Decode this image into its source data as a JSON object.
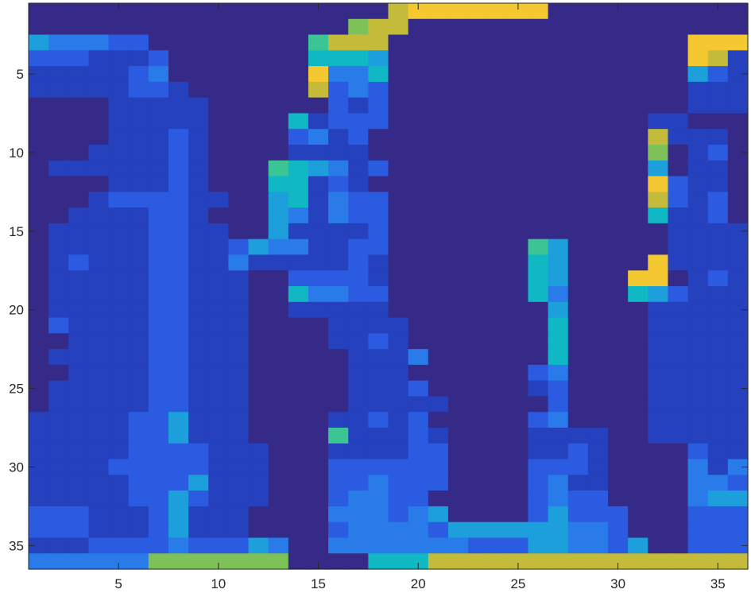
{
  "chart_data": {
    "type": "heatmap",
    "title": "",
    "xlabel": "",
    "ylabel": "",
    "xlim": [
      0.5,
      36.5
    ],
    "ylim": [
      0.5,
      36.5
    ],
    "y_direction": "reverse",
    "colormap": "parula",
    "clim": [
      0,
      10
    ],
    "grid": false,
    "colorbar": false,
    "x_ticks": [
      5,
      10,
      15,
      20,
      25,
      30,
      35
    ],
    "y_ticks": [
      5,
      10,
      15,
      20,
      25,
      30,
      35
    ],
    "x_tick_labels": [
      "5",
      "10",
      "15",
      "20",
      "25",
      "30",
      "35"
    ],
    "y_tick_labels": [
      "5",
      "10",
      "15",
      "20",
      "25",
      "30",
      "35"
    ],
    "encoding": "rows top-to-bottom, one character per column; 0-9 map linearly onto colormap",
    "rows": [
      "000000000000000000899999990000000000",
      "000000000000000078800000000000000000",
      "433322000000006888000000000000000999",
      "222111200000005554000000000000000981",
      "111112300000009335000000000000000421",
      "111112210000008232000000000000000111",
      "000011111000000212000000000000000111",
      "000011111000051222000000000000011000",
      "000011121000023120000000000000081110",
      "000111121000011110000000000000070120",
      "011111121000654312000000000000040110",
      "000011121000551210000000000000092110",
      "000122221100451322000000000000082120",
      "001111221000431322000000000000051120",
      "011111221100411112000000000000001111",
      "011111221124331122000000064000001111",
      "012111221131111121000000054000091111",
      "011111221110022221000000054000990121",
      "011111221110053322000000053000542111",
      "011111221110011111000000004000011111",
      "021111221110000111100000005000011111",
      "001111221110000112100000005000011111",
      "011111221110000011130000005000011111",
      "001111221110000011100000023000011111",
      "011111221110000011120000012000011111",
      "011111221110000011111000002000011111",
      "111112241110000112120000023000011111",
      "111112241110000611121000011110011111",
      "111112222111000111122000011210000211",
      "111122222111000222222000022210000313",
      "111112224111000223222000023110000332",
      "111112242111000233220000023220000344",
      "222111241110000333234000024222000222",
      "222111241110000233332444444332000222",
      "111222232224300333333322244332400222",
      "333333777777700005558888888888888888"
    ]
  }
}
